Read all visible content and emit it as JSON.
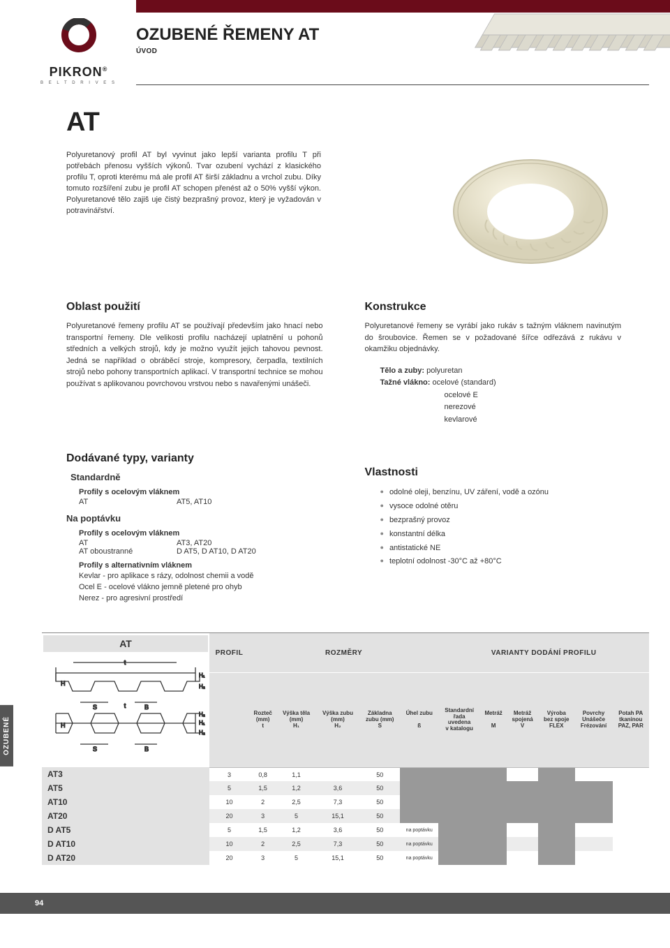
{
  "logo": {
    "brand": "PIKRON",
    "tag": "B E L T   D R I V E S"
  },
  "header": {
    "title": "OZUBENÉ ŘEMENY AT",
    "subtitle": "ÚVOD"
  },
  "main_heading": "AT",
  "intro_paragraph": "Polyuretanový profil AT byl vyvinut jako lepší varianta profilu T při potřebách přenosu vyšších výkonů. Tvar ozubení vychází z klasického profilu T, oproti kterému má ale profil AT širší základnu a vrchol zubu. Díky tomuto rozšíření zubu je profil AT schopen přenést až o 50% vyšší výkon. Polyuretanové tělo zajiš uje čistý bezprašný provoz, který je vyžadován v potravinářství.",
  "oblast": {
    "title": "Oblast použití",
    "text": "Polyuretanové řemeny profilu AT se používají především jako hnací nebo transportní řemeny. Dle velikosti profilu nacházejí uplatnění u pohonů středních a velkých strojů, kdy je možno využít jejich tahovou pevnost. Jedná se například o obráběcí stroje, kompresory, čerpadla, textilních strojů nebo pohony transportních aplikací. V transportní technice se mohou používat s aplikovanou povrchovou vrstvou nebo s navařenými unášeči."
  },
  "konstrukce": {
    "title": "Konstrukce",
    "text": "Polyuretanové řemeny se vyrábí jako rukáv s tažným vláknem navinutým do šroubovice. Řemen se v požadované šířce odřezává z rukávu v okamžiku objednávky.",
    "line1_label": "Tělo a zuby:",
    "line1_val": "polyuretan",
    "line2_label": "Tažné vlákno:",
    "line2_val": "ocelové (standard)",
    "line3": "ocelové E",
    "line4": "nerezové",
    "line5": "kevlarové"
  },
  "types": {
    "title": "Dodávané typy, varianty",
    "std_h": "Standardně",
    "std_b": "Profily s ocelovým vláknem",
    "std_r1a": "AT",
    "std_r1b": "AT5, AT10",
    "req_h": "Na poptávku",
    "req_b1": "Profily s ocelovým vláknem",
    "req_r1a": "AT",
    "req_r1b": "AT3, AT20",
    "req_r2a": "AT oboustranné",
    "req_r2b": "D AT5, D AT10, D AT20",
    "req_b2": "Profily s alternativním vláknem",
    "alt1": "Kevlar  - pro aplikace s rázy, odolnost chemii a vodě",
    "alt2": "Ocel E - ocelové vlákno jemně pletené pro ohyb",
    "alt3": "Nerez - pro agresivní prostředí"
  },
  "vlast": {
    "title": "Vlastnosti",
    "items": [
      "odolné oleji, benzínu, UV záření, vodě a ozónu",
      "vysoce odolné otěru",
      "bezprašný provoz",
      "konstantní délka",
      "antistatické NE",
      "teplotní odolnost -30°C až +80°C"
    ]
  },
  "side_tab": "OZUBENÉ",
  "table": {
    "corner": "AT",
    "grp_profil": "PROFIL",
    "grp_rozmery": "ROZMĚRY",
    "grp_varianty": "VARIANTY DODÁNÍ PROFILU",
    "cols_dim": [
      {
        "l1": "Rozteč",
        "l2": "(mm)",
        "l3": "t"
      },
      {
        "l1": "Výška těla",
        "l2": "(mm)",
        "l3": "H₁"
      },
      {
        "l1": "Výška zubu",
        "l2": "(mm)",
        "l3": "H₂"
      },
      {
        "l1": "Základna",
        "l2": "zubu (mm)",
        "l3": "S"
      },
      {
        "l1": "Úhel zubu",
        "l2": "",
        "l3": "ß"
      }
    ],
    "cols_var": [
      {
        "l1": "Standardní",
        "l2": "řada",
        "l3": "uvedena",
        "l4": "v katalogu"
      },
      {
        "l1": "Metráž",
        "l2": "",
        "l3": "M",
        "l4": ""
      },
      {
        "l1": "Metráž",
        "l2": "spojená",
        "l3": "V",
        "l4": ""
      },
      {
        "l1": "Výroba",
        "l2": "bez spoje",
        "l3": "FLEX",
        "l4": ""
      },
      {
        "l1": "Povrchy",
        "l2": "Unášeče",
        "l3": "Frézování",
        "l4": ""
      },
      {
        "l1": "Potah PA",
        "l2": "tkaninou",
        "l3": "PAZ, PAR",
        "l4": ""
      }
    ],
    "rows": [
      {
        "name": "AT3",
        "t": "3",
        "h1": "0,8",
        "h2": "1,1",
        "s": "",
        "b": "50",
        "v": [
          1,
          1,
          1,
          0,
          1,
          0
        ]
      },
      {
        "name": "AT5",
        "t": "5",
        "h1": "1,5",
        "h2": "1,2",
        "s": "3,6",
        "b": "50",
        "v": [
          1,
          1,
          1,
          1,
          1,
          1
        ]
      },
      {
        "name": "AT10",
        "t": "10",
        "h1": "2",
        "h2": "2,5",
        "s": "7,3",
        "b": "50",
        "v": [
          1,
          1,
          1,
          1,
          1,
          1
        ]
      },
      {
        "name": "AT20",
        "t": "20",
        "h1": "3",
        "h2": "5",
        "s": "15,1",
        "b": "50",
        "v": [
          1,
          1,
          1,
          1,
          1,
          1
        ]
      },
      {
        "name": "D AT5",
        "t": "5",
        "h1": "1,5",
        "h2": "1,2",
        "s": "3,6",
        "b": "50",
        "note": "na poptávku",
        "v": [
          0,
          1,
          1,
          0,
          1,
          0
        ]
      },
      {
        "name": "D AT10",
        "t": "10",
        "h1": "2",
        "h2": "2,5",
        "s": "7,3",
        "b": "50",
        "note": "na poptávku",
        "v": [
          0,
          1,
          1,
          0,
          1,
          0
        ]
      },
      {
        "name": "D AT20",
        "t": "20",
        "h1": "3",
        "h2": "5",
        "s": "15,1",
        "b": "50",
        "note": "na poptávku",
        "v": [
          0,
          1,
          1,
          0,
          1,
          0
        ]
      }
    ]
  },
  "footer": {
    "page": "94"
  },
  "colors": {
    "brand": "#6b0c1a",
    "grey": "#888",
    "dark": "#555"
  }
}
